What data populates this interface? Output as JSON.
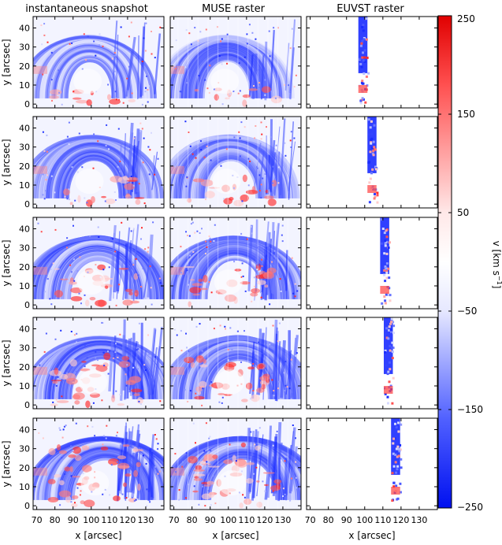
{
  "figure": {
    "column_titles": [
      "instantaneous snapshot",
      "MUSE raster",
      "EUVST raster"
    ],
    "row_count": 5
  },
  "chart_data": {
    "type": "heatmap",
    "panels_layout": "5 rows x 3 columns",
    "xlabel": "x [arcsec]",
    "ylabel": "y [arcsec]",
    "xlim": [
      68,
      140
    ],
    "ylim": [
      -2,
      46
    ],
    "x_ticks": [
      70,
      80,
      90,
      100,
      110,
      120,
      130
    ],
    "y_ticks": [
      0,
      10,
      20,
      30,
      40
    ],
    "euvst_slit_x_centers": [
      99,
      104,
      111,
      113,
      117
    ],
    "colorbar": {
      "label_main": "v [km s",
      "label_exp": "−1",
      "label_tail": "]",
      "min": -250,
      "max": 250,
      "ticks": [
        250,
        150,
        50,
        -50,
        -150,
        -250
      ],
      "tick_labels": [
        "250",
        "150",
        "50",
        "−50",
        "−150",
        "−250"
      ],
      "colors": {
        "negative": "#0a1dff",
        "zero": "#ffffff",
        "positive": "#ff1a1a"
      }
    }
  }
}
